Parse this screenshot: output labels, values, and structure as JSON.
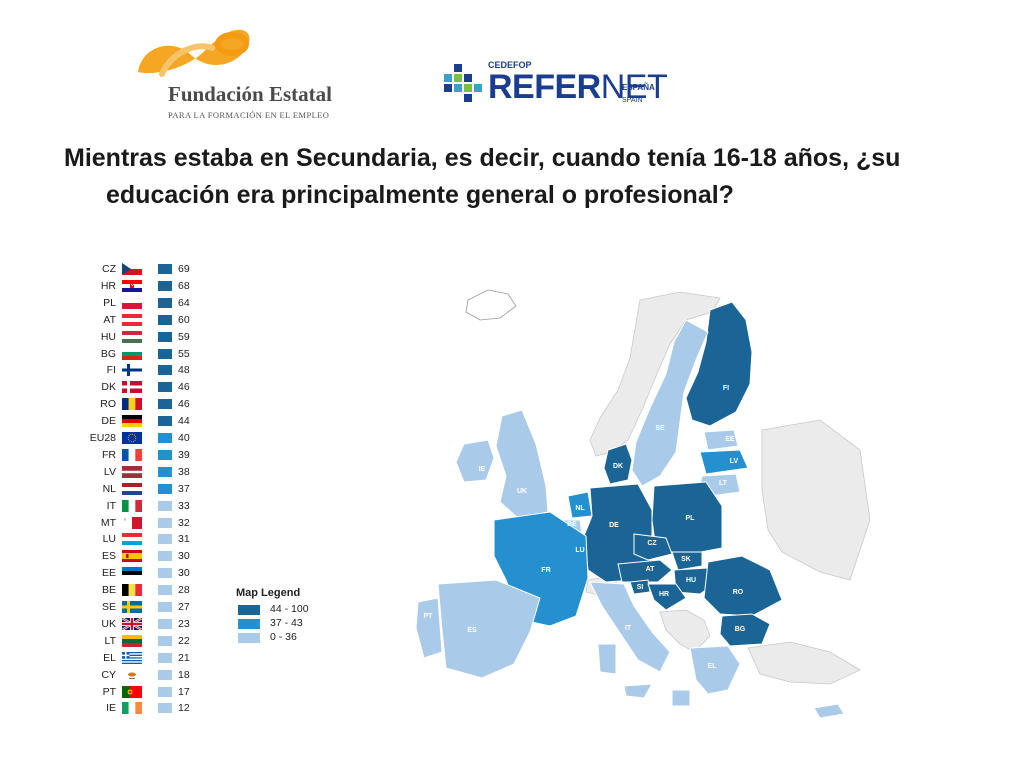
{
  "logos": {
    "fundacion": {
      "name": "Fundación Estatal",
      "tagline": "PARA LA FORMACIÓN EN EL EMPLEO"
    },
    "refernet": {
      "org": "CEDEFOP",
      "name_bold": "REFER",
      "name_light": "NET",
      "country": "ESPAÑA",
      "country_en": "SPAIN"
    }
  },
  "question": "Mientras estaba en Secundaria, es decir, cuando tenía 16-18 años, ¿su educación era principalmente general o profesional?",
  "colors": {
    "high": "#1b6496",
    "mid": "#2490d0",
    "low": "#a9cbe9",
    "neutral": "#ebebeb"
  },
  "ranking": [
    {
      "code": "CZ",
      "value": "69",
      "flag": "cz-flag-icon",
      "band": "high"
    },
    {
      "code": "HR",
      "value": "68",
      "flag": "hr-flag-icon",
      "band": "high"
    },
    {
      "code": "PL",
      "value": "64",
      "flag": "pl-flag-icon",
      "band": "high"
    },
    {
      "code": "AT",
      "value": "60",
      "flag": "at-flag-icon",
      "band": "high"
    },
    {
      "code": "HU",
      "value": "59",
      "flag": "hu-flag-icon",
      "band": "high"
    },
    {
      "code": "BG",
      "value": "55",
      "flag": "bg-flag-icon",
      "band": "high"
    },
    {
      "code": "FI",
      "value": "48",
      "flag": "fi-flag-icon",
      "band": "high"
    },
    {
      "code": "DK",
      "value": "46",
      "flag": "dk-flag-icon",
      "band": "high"
    },
    {
      "code": "RO",
      "value": "46",
      "flag": "ro-flag-icon",
      "band": "high"
    },
    {
      "code": "DE",
      "value": "44",
      "flag": "de-flag-icon",
      "band": "high"
    },
    {
      "code": "EU28",
      "value": "40",
      "flag": "eu-flag-icon",
      "band": "mid"
    },
    {
      "code": "FR",
      "value": "39",
      "flag": "fr-flag-icon",
      "band": "mid"
    },
    {
      "code": "LV",
      "value": "38",
      "flag": "lv-flag-icon",
      "band": "mid"
    },
    {
      "code": "NL",
      "value": "37",
      "flag": "nl-flag-icon",
      "band": "mid"
    },
    {
      "code": "IT",
      "value": "33",
      "flag": "it-flag-icon",
      "band": "low"
    },
    {
      "code": "MT",
      "value": "32",
      "flag": "mt-flag-icon",
      "band": "low"
    },
    {
      "code": "LU",
      "value": "31",
      "flag": "lu-flag-icon",
      "band": "low"
    },
    {
      "code": "ES",
      "value": "30",
      "flag": "es-flag-icon",
      "band": "low"
    },
    {
      "code": "EE",
      "value": "30",
      "flag": "ee-flag-icon",
      "band": "low"
    },
    {
      "code": "BE",
      "value": "28",
      "flag": "be-flag-icon",
      "band": "low"
    },
    {
      "code": "SE",
      "value": "27",
      "flag": "se-flag-icon",
      "band": "low"
    },
    {
      "code": "UK",
      "value": "23",
      "flag": "uk-flag-icon",
      "band": "low"
    },
    {
      "code": "LT",
      "value": "22",
      "flag": "lt-flag-icon",
      "band": "low"
    },
    {
      "code": "EL",
      "value": "21",
      "flag": "el-flag-icon",
      "band": "low"
    },
    {
      "code": "CY",
      "value": "18",
      "flag": "cy-flag-icon",
      "band": "low"
    },
    {
      "code": "PT",
      "value": "17",
      "flag": "pt-flag-icon",
      "band": "low"
    },
    {
      "code": "IE",
      "value": "12",
      "flag": "ie-flag-icon",
      "band": "low"
    }
  ],
  "legend": {
    "title": "Map Legend",
    "items": [
      {
        "label": "44 - 100",
        "band": "high"
      },
      {
        "label": "37 - 43",
        "band": "mid"
      },
      {
        "label": "0 - 36",
        "band": "low"
      }
    ]
  },
  "map": {
    "countries": [
      {
        "code": "FI",
        "band": "high"
      },
      {
        "code": "SE",
        "band": "low"
      },
      {
        "code": "EE",
        "band": "low"
      },
      {
        "code": "LV",
        "band": "mid"
      },
      {
        "code": "LT",
        "band": "low"
      },
      {
        "code": "DK",
        "band": "high"
      },
      {
        "code": "IE",
        "band": "low"
      },
      {
        "code": "UK",
        "band": "low"
      },
      {
        "code": "NL",
        "band": "mid"
      },
      {
        "code": "BE",
        "band": "low"
      },
      {
        "code": "LU",
        "band": "low"
      },
      {
        "code": "DE",
        "band": "high"
      },
      {
        "code": "PL",
        "band": "high"
      },
      {
        "code": "CZ",
        "band": "high"
      },
      {
        "code": "SK",
        "band": "high"
      },
      {
        "code": "AT",
        "band": "high"
      },
      {
        "code": "HU",
        "band": "high"
      },
      {
        "code": "SI",
        "band": "high"
      },
      {
        "code": "HR",
        "band": "high"
      },
      {
        "code": "RO",
        "band": "high"
      },
      {
        "code": "BG",
        "band": "high"
      },
      {
        "code": "FR",
        "band": "mid"
      },
      {
        "code": "PT",
        "band": "low"
      },
      {
        "code": "ES",
        "band": "low"
      },
      {
        "code": "IT",
        "band": "low"
      },
      {
        "code": "EL",
        "band": "low"
      },
      {
        "code": "MT",
        "band": "low"
      },
      {
        "code": "CY",
        "band": "low"
      }
    ]
  }
}
